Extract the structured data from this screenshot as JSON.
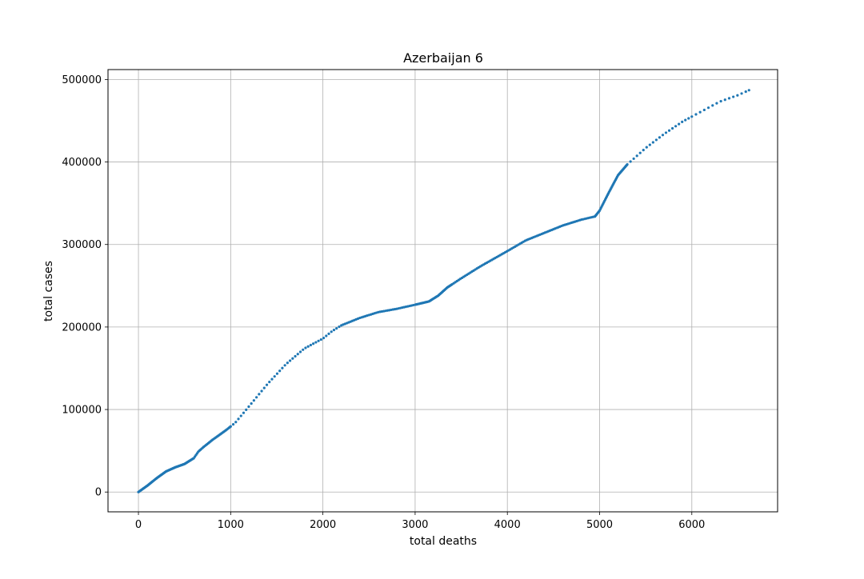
{
  "chart_data": {
    "type": "scatter",
    "title": "Azerbaijan 6",
    "xlabel": "total deaths",
    "ylabel": "total cases",
    "xlim": [
      -330,
      6930
    ],
    "ylim": [
      -24000,
      512000
    ],
    "xticks": [
      0,
      1000,
      2000,
      3000,
      4000,
      5000,
      6000
    ],
    "yticks": [
      0,
      100000,
      200000,
      300000,
      400000,
      500000
    ],
    "grid": true,
    "point_color": "#1f77b4",
    "anchors": [
      [
        0,
        0
      ],
      [
        100,
        8000
      ],
      [
        200,
        17000
      ],
      [
        300,
        25000
      ],
      [
        400,
        30000
      ],
      [
        500,
        34000
      ],
      [
        600,
        41000
      ],
      [
        650,
        49000
      ],
      [
        700,
        54000
      ],
      [
        800,
        63000
      ],
      [
        950,
        75000
      ],
      [
        1050,
        84000
      ],
      [
        1200,
        104000
      ],
      [
        1400,
        131000
      ],
      [
        1600,
        155000
      ],
      [
        1800,
        174000
      ],
      [
        2000,
        186000
      ],
      [
        2100,
        195000
      ],
      [
        2200,
        202000
      ],
      [
        2400,
        211000
      ],
      [
        2600,
        218000
      ],
      [
        2800,
        222000
      ],
      [
        3000,
        227000
      ],
      [
        3150,
        231000
      ],
      [
        3250,
        238000
      ],
      [
        3350,
        248000
      ],
      [
        3500,
        259000
      ],
      [
        3700,
        273000
      ],
      [
        4000,
        292000
      ],
      [
        4200,
        305000
      ],
      [
        4400,
        314000
      ],
      [
        4600,
        323000
      ],
      [
        4800,
        330000
      ],
      [
        4950,
        334000
      ],
      [
        5000,
        341000
      ],
      [
        5100,
        363000
      ],
      [
        5200,
        384000
      ],
      [
        5300,
        397000
      ],
      [
        5500,
        417000
      ],
      [
        5700,
        434000
      ],
      [
        5900,
        449000
      ],
      [
        6100,
        461000
      ],
      [
        6300,
        473000
      ],
      [
        6500,
        481000
      ],
      [
        6620,
        487000
      ]
    ],
    "point_spacing": [
      [
        0,
        600,
        8
      ],
      [
        600,
        1000,
        12
      ],
      [
        1000,
        2200,
        28
      ],
      [
        2200,
        3000,
        20
      ],
      [
        3000,
        3400,
        10
      ],
      [
        3400,
        4950,
        18
      ],
      [
        4950,
        5300,
        8
      ],
      [
        5300,
        6000,
        35
      ],
      [
        6000,
        6620,
        45
      ]
    ]
  }
}
